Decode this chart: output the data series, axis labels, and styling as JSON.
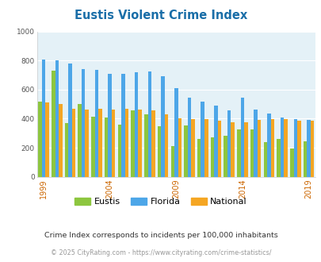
{
  "title": "Eustis Violent Crime Index",
  "years": [
    1999,
    2000,
    2001,
    2002,
    2003,
    2004,
    2005,
    2006,
    2007,
    2008,
    2009,
    2010,
    2011,
    2012,
    2013,
    2014,
    2015,
    2016,
    2017,
    2018,
    2019
  ],
  "eustis": [
    515,
    730,
    370,
    500,
    415,
    410,
    360,
    455,
    430,
    350,
    210,
    355,
    260,
    270,
    280,
    325,
    325,
    240,
    260,
    195,
    245
  ],
  "florida": [
    808,
    800,
    780,
    740,
    735,
    710,
    710,
    720,
    725,
    690,
    608,
    545,
    515,
    490,
    460,
    545,
    465,
    435,
    410,
    395,
    390
  ],
  "national": [
    510,
    500,
    470,
    465,
    470,
    465,
    470,
    465,
    455,
    430,
    405,
    395,
    395,
    385,
    375,
    375,
    390,
    395,
    395,
    385,
    385
  ],
  "eustis_color": "#8dc63f",
  "florida_color": "#4da6e8",
  "national_color": "#f5a623",
  "bg_color": "#e4f1f7",
  "ylim": [
    0,
    1000
  ],
  "yticks": [
    0,
    200,
    400,
    600,
    800,
    1000
  ],
  "xlabel_ticks": [
    1999,
    2004,
    2009,
    2014,
    2019
  ],
  "title_color": "#1a6ea8",
  "subtitle": "Crime Index corresponds to incidents per 100,000 inhabitants",
  "subtitle_color": "#333333",
  "footer": "© 2025 CityRating.com - https://www.cityrating.com/crime-statistics/",
  "footer_color": "#999999",
  "tick_color": "#cc6600",
  "grid_color": "#ffffff",
  "legend_labels": [
    "Eustis",
    "Florida",
    "National"
  ]
}
